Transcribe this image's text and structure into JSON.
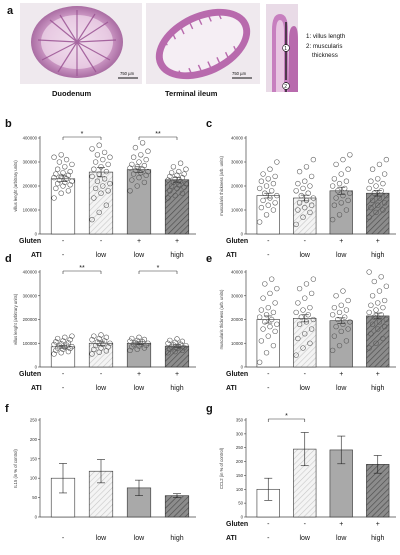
{
  "figure": {
    "panel_a": {
      "label": "a",
      "scale_bar": "750 µm",
      "captions": [
        "Duodenum",
        "Terminal ileum"
      ],
      "legend": [
        "1: villus length",
        "2: muscularis",
        "thickness"
      ],
      "markers": [
        "1",
        "2"
      ]
    },
    "rows": {
      "gluten_label": "Gluten",
      "ati_label": "ATI",
      "gluten_values": [
        "-",
        "-",
        "+",
        "+"
      ],
      "ati_values": [
        "-",
        "low",
        "low",
        "high"
      ]
    },
    "colors": {
      "bar_fills": [
        "#ffffff",
        "#e8e8e8",
        "#a9a9a9",
        "#8c8c8c"
      ],
      "hatched_bars": [
        1,
        3
      ],
      "axis": "#444444",
      "point_stroke": "#555555"
    }
  },
  "chart_data": [
    {
      "panel": "b",
      "type": "bar",
      "categories": [
        "-/-",
        "-/low",
        "+/low",
        "+/high"
      ],
      "values": [
        230000,
        258000,
        268000,
        226000
      ],
      "errors": [
        12000,
        20000,
        12000,
        10000
      ],
      "ylim": [
        0,
        400000
      ],
      "yticks": [
        "0",
        "100000",
        "200000",
        "300000",
        "400000"
      ],
      "ylabel": "villus lenght (arbitrary units)",
      "points": [
        [
          150000,
          170000,
          180000,
          190000,
          200000,
          205000,
          210000,
          215000,
          220000,
          225000,
          230000,
          235000,
          240000,
          245000,
          250000,
          255000,
          260000,
          270000,
          280000,
          290000,
          300000,
          310000,
          320000,
          330000
        ],
        [
          60000,
          90000,
          120000,
          150000,
          170000,
          180000,
          190000,
          200000,
          210000,
          220000,
          230000,
          240000,
          250000,
          260000,
          270000,
          280000,
          290000,
          300000,
          310000,
          320000,
          330000,
          340000,
          355000,
          370000
        ],
        [
          180000,
          200000,
          215000,
          225000,
          235000,
          245000,
          250000,
          255000,
          260000,
          265000,
          270000,
          275000,
          280000,
          285000,
          290000,
          300000,
          310000,
          320000,
          330000,
          345000,
          360000,
          380000
        ],
        [
          150000,
          160000,
          170000,
          180000,
          190000,
          195000,
          200000,
          205000,
          210000,
          215000,
          220000,
          225000,
          230000,
          235000,
          240000,
          245000,
          250000,
          255000,
          260000,
          270000,
          280000,
          295000
        ]
      ],
      "significance": [
        {
          "from": 0,
          "to": 1,
          "label": "*"
        },
        {
          "from": 2,
          "to": 3,
          "label": "**"
        }
      ]
    },
    {
      "panel": "c",
      "type": "bar",
      "categories": [
        "-/-",
        "-/low",
        "+/low",
        "+/high"
      ],
      "values": [
        16000,
        15000,
        18000,
        17000
      ],
      "errors": [
        1000,
        1200,
        1500,
        1200
      ],
      "ylim": [
        0,
        40000
      ],
      "yticks": [
        "0",
        "10000",
        "20000",
        "30000",
        "40000"
      ],
      "ylabel": "muscularis thickness (arb. units)",
      "points": [
        [
          5000,
          8000,
          10000,
          11000,
          12000,
          13000,
          14000,
          15000,
          16000,
          17000,
          18000,
          19000,
          20000,
          21000,
          22000,
          23000,
          24000,
          25000,
          27000,
          30000
        ],
        [
          4000,
          7000,
          9000,
          10000,
          11000,
          12000,
          13000,
          14000,
          15000,
          16000,
          17000,
          18000,
          19000,
          20000,
          21000,
          22000,
          24000,
          26000,
          28000,
          31000
        ],
        [
          6000,
          8000,
          10000,
          12000,
          13000,
          14000,
          15000,
          16000,
          17000,
          18000,
          19000,
          20000,
          21000,
          22000,
          23000,
          25000,
          27000,
          29000,
          31000,
          33000
        ],
        [
          7000,
          9000,
          10000,
          11000,
          12000,
          13000,
          14000,
          15000,
          16000,
          17000,
          18000,
          19000,
          20000,
          21000,
          22000,
          23000,
          25000,
          27000,
          29000,
          31000
        ]
      ],
      "significance": []
    },
    {
      "panel": "d",
      "type": "bar",
      "categories": [
        "-/-",
        "-/low",
        "+/low",
        "+/high"
      ],
      "values": [
        85000,
        100000,
        100000,
        88000
      ],
      "errors": [
        6000,
        9000,
        6000,
        5000
      ],
      "ylim": [
        0,
        400000
      ],
      "yticks": [
        "0",
        "100000",
        "200000",
        "300000",
        "400000"
      ],
      "ylabel": "villus lenght (arbitrary units)",
      "points": [
        [
          55000,
          60000,
          65000,
          70000,
          75000,
          78000,
          80000,
          83000,
          86000,
          89000,
          92000,
          95000,
          98000,
          102000,
          106000,
          110000,
          115000,
          120000,
          125000,
          130000
        ],
        [
          55000,
          62000,
          68000,
          74000,
          80000,
          85000,
          90000,
          95000,
          100000,
          105000,
          110000,
          115000,
          120000,
          125000,
          130000,
          135000
        ],
        [
          70000,
          75000,
          80000,
          85000,
          88000,
          91000,
          94000,
          97000,
          100000,
          103000,
          106000,
          109000,
          112000,
          116000,
          120000,
          125000
        ],
        [
          60000,
          65000,
          70000,
          75000,
          78000,
          81000,
          84000,
          87000,
          90000,
          93000,
          96000,
          100000,
          104000,
          108000,
          112000,
          118000
        ]
      ],
      "significance": [
        {
          "from": 0,
          "to": 1,
          "label": "**"
        },
        {
          "from": 2,
          "to": 3,
          "label": "*"
        }
      ]
    },
    {
      "panel": "e",
      "type": "bar",
      "categories": [
        "-/-",
        "-/low",
        "+/low",
        "+/high"
      ],
      "values": [
        20000,
        20500,
        19500,
        21500
      ],
      "errors": [
        1500,
        1500,
        1200,
        1200
      ],
      "ylim": [
        0,
        40000
      ],
      "yticks": [
        "0",
        "10000",
        "20000",
        "30000",
        "40000"
      ],
      "ylabel": "muscularis thickness (arb. units)",
      "points": [
        [
          2000,
          6000,
          9000,
          11000,
          13000,
          15000,
          16000,
          17000,
          18000,
          19000,
          20000,
          21000,
          22000,
          23000,
          24000,
          25000,
          27000,
          29000,
          31000,
          33000,
          35000,
          37000
        ],
        [
          5000,
          8000,
          10000,
          12000,
          14000,
          16000,
          18000,
          19000,
          20000,
          21000,
          22000,
          23000,
          24000,
          25000,
          27000,
          29000,
          31000,
          33000,
          35000,
          37000
        ],
        [
          7000,
          9000,
          11000,
          13000,
          15000,
          16000,
          17000,
          18000,
          19000,
          20000,
          21000,
          22000,
          23000,
          24000,
          25000,
          26000,
          28000,
          30000,
          32000
        ],
        [
          8000,
          10000,
          12000,
          14000,
          16000,
          17000,
          18000,
          19000,
          20000,
          21000,
          22000,
          23000,
          24000,
          25000,
          26000,
          27000,
          28000,
          30000,
          32000,
          34000,
          36000,
          38000,
          40000
        ]
      ],
      "significance": []
    },
    {
      "panel": "f",
      "type": "bar",
      "categories": [
        "-/-",
        "-/low",
        "+/low",
        "+/high"
      ],
      "values": [
        100,
        118,
        75,
        55
      ],
      "errors": [
        38,
        30,
        20,
        5
      ],
      "ylim": [
        0,
        250
      ],
      "yticks": [
        "0",
        "50",
        "100",
        "150",
        "200",
        "250"
      ],
      "ylabel": "IL15 (in % of control)",
      "significance": []
    },
    {
      "panel": "g",
      "type": "bar",
      "categories": [
        "-/-",
        "-/low",
        "+/low",
        "+/high"
      ],
      "values": [
        100,
        245,
        242,
        190
      ],
      "errors": [
        40,
        60,
        50,
        32
      ],
      "ylim": [
        0,
        350
      ],
      "yticks": [
        "0",
        "50",
        "100",
        "150",
        "200",
        "250",
        "300",
        "350"
      ],
      "ylabel": "CCL2 (in % of control)",
      "significance": [
        {
          "from": 0,
          "to": 1,
          "label": "*"
        }
      ]
    }
  ]
}
